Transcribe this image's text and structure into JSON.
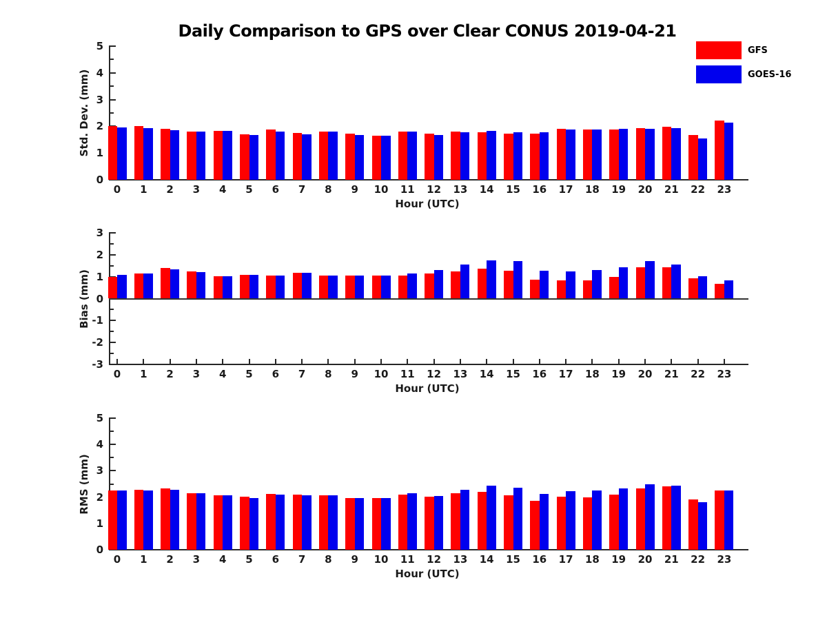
{
  "title": "Daily Comparison to GPS over Clear CONUS 2019-04-21",
  "legend": {
    "position": "top-right",
    "items": [
      {
        "label": "GFS",
        "color": "#ff0000"
      },
      {
        "label": "GOES-16",
        "color": "#0000ee"
      }
    ]
  },
  "chart_data": [
    {
      "type": "bar",
      "panel": "std-dev",
      "ylabel": "Std. Dev. (mm)",
      "xlabel": "Hour (UTC)",
      "ylim": [
        0,
        5
      ],
      "yticks": [
        0,
        1,
        2,
        3,
        4,
        5
      ],
      "grid": false,
      "categories": [
        "0",
        "1",
        "2",
        "3",
        "4",
        "5",
        "6",
        "7",
        "8",
        "9",
        "10",
        "11",
        "12",
        "13",
        "14",
        "15",
        "16",
        "17",
        "18",
        "19",
        "20",
        "21",
        "22",
        "23"
      ],
      "series": [
        {
          "name": "GFS",
          "color": "#ff0000",
          "values": [
            2.0,
            2.0,
            1.9,
            1.8,
            1.82,
            1.7,
            1.87,
            1.76,
            1.81,
            1.72,
            1.66,
            1.81,
            1.74,
            1.81,
            1.79,
            1.74,
            1.74,
            1.9,
            1.87,
            1.87,
            1.94,
            1.98,
            1.68,
            2.23
          ]
        },
        {
          "name": "GOES-16",
          "color": "#0000ee",
          "values": [
            1.97,
            1.93,
            1.86,
            1.8,
            1.82,
            1.67,
            1.81,
            1.71,
            1.81,
            1.68,
            1.66,
            1.81,
            1.68,
            1.77,
            1.82,
            1.77,
            1.78,
            1.87,
            1.87,
            1.91,
            1.92,
            1.93,
            1.54,
            2.14
          ]
        }
      ]
    },
    {
      "type": "bar",
      "panel": "bias",
      "ylabel": "Bias (mm)",
      "xlabel": "Hour (UTC)",
      "ylim": [
        -3,
        3
      ],
      "yticks": [
        -3,
        -2,
        -1,
        0,
        1,
        2,
        3
      ],
      "grid": false,
      "categories": [
        "0",
        "1",
        "2",
        "3",
        "4",
        "5",
        "6",
        "7",
        "8",
        "9",
        "10",
        "11",
        "12",
        "13",
        "14",
        "15",
        "16",
        "17",
        "18",
        "19",
        "20",
        "21",
        "22",
        "23"
      ],
      "series": [
        {
          "name": "GFS",
          "color": "#ff0000",
          "values": [
            1.0,
            1.16,
            1.39,
            1.24,
            1.02,
            1.09,
            1.04,
            1.19,
            1.04,
            1.04,
            1.06,
            1.05,
            1.14,
            1.23,
            1.37,
            1.26,
            0.88,
            0.82,
            0.82,
            1.0,
            1.43,
            1.43,
            0.94,
            0.69
          ]
        },
        {
          "name": "GOES-16",
          "color": "#0000ee",
          "values": [
            1.08,
            1.16,
            1.35,
            1.21,
            1.01,
            1.09,
            1.06,
            1.17,
            1.04,
            1.04,
            1.06,
            1.16,
            1.29,
            1.55,
            1.73,
            1.7,
            1.28,
            1.25,
            1.3,
            1.43,
            1.7,
            1.57,
            1.02,
            0.82
          ]
        }
      ]
    },
    {
      "type": "bar",
      "panel": "rms",
      "ylabel": "RMS (mm)",
      "xlabel": "Hour (UTC)",
      "ylim": [
        0,
        5
      ],
      "yticks": [
        0,
        1,
        2,
        3,
        4,
        5
      ],
      "grid": false,
      "categories": [
        "0",
        "1",
        "2",
        "3",
        "4",
        "5",
        "6",
        "7",
        "8",
        "9",
        "10",
        "11",
        "12",
        "13",
        "14",
        "15",
        "16",
        "17",
        "18",
        "19",
        "20",
        "21",
        "22",
        "23"
      ],
      "series": [
        {
          "name": "GFS",
          "color": "#ff0000",
          "values": [
            2.24,
            2.28,
            2.32,
            2.15,
            2.07,
            2.02,
            2.11,
            2.09,
            2.07,
            1.96,
            1.96,
            2.09,
            2.01,
            2.14,
            2.2,
            2.07,
            1.86,
            2.03,
            1.99,
            2.1,
            2.33,
            2.4,
            1.91,
            2.24
          ]
        },
        {
          "name": "GOES-16",
          "color": "#0000ee",
          "values": [
            2.24,
            2.25,
            2.28,
            2.15,
            2.07,
            1.97,
            2.09,
            2.06,
            2.07,
            1.96,
            1.96,
            2.14,
            2.04,
            2.28,
            2.44,
            2.36,
            2.12,
            2.23,
            2.24,
            2.32,
            2.49,
            2.44,
            1.81,
            2.24
          ]
        }
      ]
    }
  ]
}
